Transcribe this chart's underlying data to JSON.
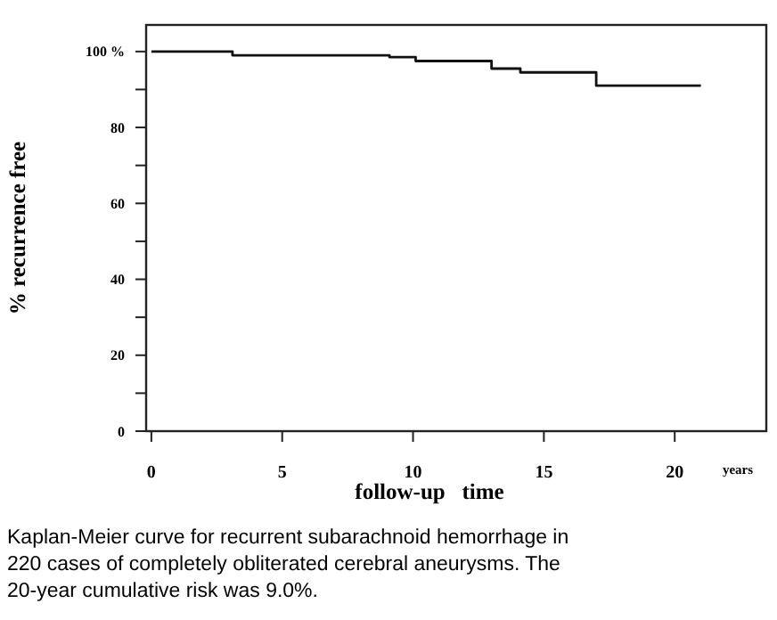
{
  "chart_data": {
    "type": "step",
    "xlabel": "follow-up   time",
    "ylabel": "% recurrence free",
    "x": [
      0,
      3.1,
      9.1,
      10.1,
      13.0,
      14.1,
      17.0,
      21.0
    ],
    "values": [
      100,
      99,
      98.5,
      97.5,
      95.5,
      94.5,
      91,
      91
    ],
    "color": "#111111",
    "line_style": "solid",
    "marker": "none",
    "xlim": [
      -0.2,
      23.5
    ],
    "ylim": [
      0,
      107
    ],
    "xticks": [
      0,
      5,
      10,
      15,
      20
    ],
    "yticks": [
      {
        "value": 0,
        "label": "0"
      },
      {
        "value": 10,
        "label": null
      },
      {
        "value": 20,
        "label": "20"
      },
      {
        "value": 30,
        "label": null
      },
      {
        "value": 40,
        "label": "40"
      },
      {
        "value": 50,
        "label": null
      },
      {
        "value": 60,
        "label": "60"
      },
      {
        "value": 70,
        "label": null
      },
      {
        "value": 80,
        "label": "80"
      },
      {
        "value": 90,
        "label": null
      },
      {
        "value": 100,
        "label": "100 %"
      }
    ],
    "grid": false,
    "annotations": [
      "years",
      "Kaplan-Meier curve for recurrent subarachnoid hemorrhage in 220 cases of completely obliterated cerebral aneurysms. The 20-year cumulative risk was 9.0%."
    ]
  }
}
